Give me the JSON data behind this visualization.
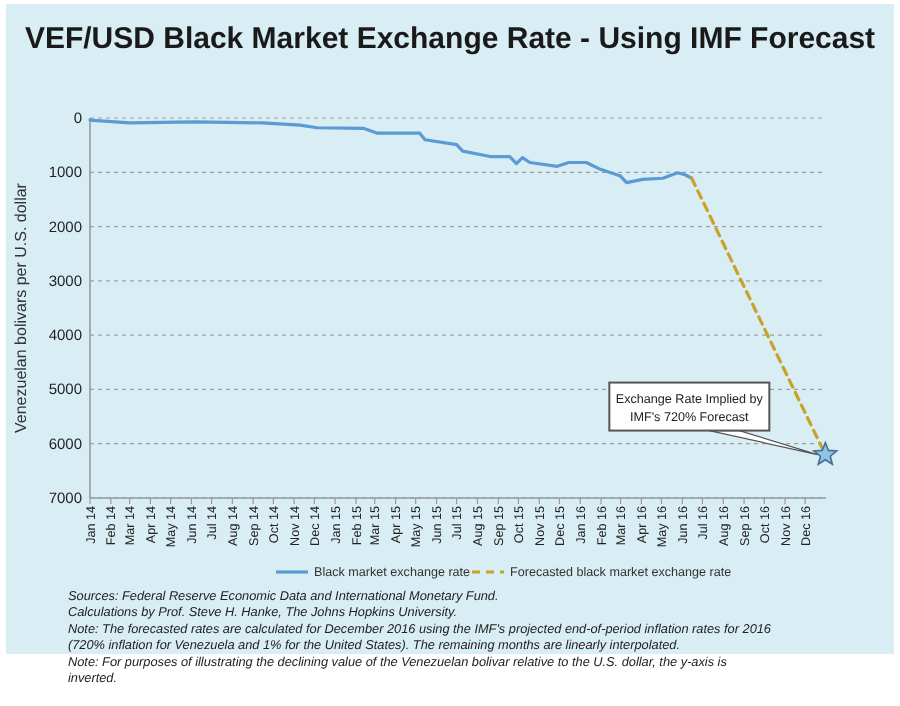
{
  "chart_data": {
    "type": "line",
    "title": "VEF/USD Black Market Exchange Rate - Using IMF Forecast",
    "ylabel": "Venezuelan bolivars per U.S. dollar",
    "xlim": [
      "2014-01-01",
      "2017-01-01"
    ],
    "xticks": [
      {
        "value": "2014-01-01",
        "label": "Jan 14"
      },
      {
        "value": "2014-02-01",
        "label": "Feb 14"
      },
      {
        "value": "2014-03-01",
        "label": "Mar 14"
      },
      {
        "value": "2014-04-01",
        "label": "Apr 14"
      },
      {
        "value": "2014-05-01",
        "label": "May 14"
      },
      {
        "value": "2014-06-01",
        "label": "Jun 14"
      },
      {
        "value": "2014-07-01",
        "label": "Jul 14"
      },
      {
        "value": "2014-08-01",
        "label": "Aug 14"
      },
      {
        "value": "2014-09-01",
        "label": "Sep 14"
      },
      {
        "value": "2014-10-01",
        "label": "Oct 14"
      },
      {
        "value": "2014-11-01",
        "label": "Nov 14"
      },
      {
        "value": "2014-12-01",
        "label": "Dec 14"
      },
      {
        "value": "2015-01-01",
        "label": "Jan 15"
      },
      {
        "value": "2015-02-01",
        "label": "Feb 15"
      },
      {
        "value": "2015-03-01",
        "label": "Mar 15"
      },
      {
        "value": "2015-04-01",
        "label": "Apr 15"
      },
      {
        "value": "2015-05-01",
        "label": "May 15"
      },
      {
        "value": "2015-06-01",
        "label": "Jun 15"
      },
      {
        "value": "2015-07-01",
        "label": "Jul 15"
      },
      {
        "value": "2015-08-01",
        "label": "Aug 15"
      },
      {
        "value": "2015-09-01",
        "label": "Sep 15"
      },
      {
        "value": "2015-10-01",
        "label": "Oct 15"
      },
      {
        "value": "2015-11-01",
        "label": "Nov 15"
      },
      {
        "value": "2015-12-01",
        "label": "Dec 15"
      },
      {
        "value": "2016-01-01",
        "label": "Jan 16"
      },
      {
        "value": "2016-02-01",
        "label": "Feb 16"
      },
      {
        "value": "2016-03-01",
        "label": "Mar 16"
      },
      {
        "value": "2016-04-01",
        "label": "Apr 16"
      },
      {
        "value": "2016-05-01",
        "label": "May 16"
      },
      {
        "value": "2016-06-01",
        "label": "Jun 16"
      },
      {
        "value": "2016-07-01",
        "label": "Jul 16"
      },
      {
        "value": "2016-08-01",
        "label": "Aug 16"
      },
      {
        "value": "2016-09-01",
        "label": "Sep 16"
      },
      {
        "value": "2016-10-01",
        "label": "Oct 16"
      },
      {
        "value": "2016-11-01",
        "label": "Nov 16"
      },
      {
        "value": "2016-12-01",
        "label": "Dec 16"
      }
    ],
    "ylim": [
      7000,
      0
    ],
    "yticks": [
      0,
      1000,
      2000,
      3000,
      4000,
      5000,
      6000,
      7000
    ],
    "grid": "y",
    "legend": "bottom",
    "series": [
      {
        "name": "Black market exchange rate",
        "color": "#5b9bd5",
        "line_style": "solid",
        "x": [
          "2014-01-01",
          "2014-03-01",
          "2014-06-07",
          "2014-09-15",
          "2014-11-10",
          "2014-12-05",
          "2015-02-12",
          "2015-03-05",
          "2015-05-07",
          "2015-05-15",
          "2015-07-01",
          "2015-07-10",
          "2015-08-20",
          "2015-09-18",
          "2015-09-28",
          "2015-10-07",
          "2015-10-18",
          "2015-11-28",
          "2015-12-15",
          "2016-01-10",
          "2016-02-01",
          "2016-03-01",
          "2016-03-10",
          "2016-04-03",
          "2016-05-03",
          "2016-05-25",
          "2016-06-06",
          "2016-06-15"
        ],
        "values": [
          40,
          90,
          70,
          90,
          130,
          180,
          190,
          280,
          280,
          400,
          490,
          610,
          710,
          710,
          840,
          730,
          820,
          890,
          820,
          820,
          950,
          1070,
          1190,
          1130,
          1110,
          1010,
          1050,
          1110
        ]
      },
      {
        "name": "Forecasted black market exchange rate",
        "color": "#c9a227",
        "line_style": "dashed",
        "x": [
          "2016-06-15",
          "2016-12-31"
        ],
        "values": [
          1110,
          6200
        ]
      },
      {
        "type": "scatter",
        "marker": "star",
        "color": "#8ec3ea",
        "x": [
          "2016-12-31"
        ],
        "values": [
          6200
        ]
      }
    ],
    "annotations": [
      {
        "text": "Exchange Rate Implied by IMF's 720% Forecast",
        "x": "2016-12-31",
        "y": 6200
      },
      "Sources: Federal Reserve Economic Data and International Monetary Fund.",
      "Calculations by Prof. Steve H. Hanke, The Johns Hopkins University.",
      "Note: The forecasted rates are calculated for December 2016 using the IMF's projected end-of-period inflation rates for 2016 (720% inflation for Venezuela and 1% for the United States). The remaining months are linearly interpolated.",
      "Note: For purposes of illustrating the declining value of the Venezuelan bolivar relative to the U.S. dollar, the y-axis is inverted."
    ]
  }
}
